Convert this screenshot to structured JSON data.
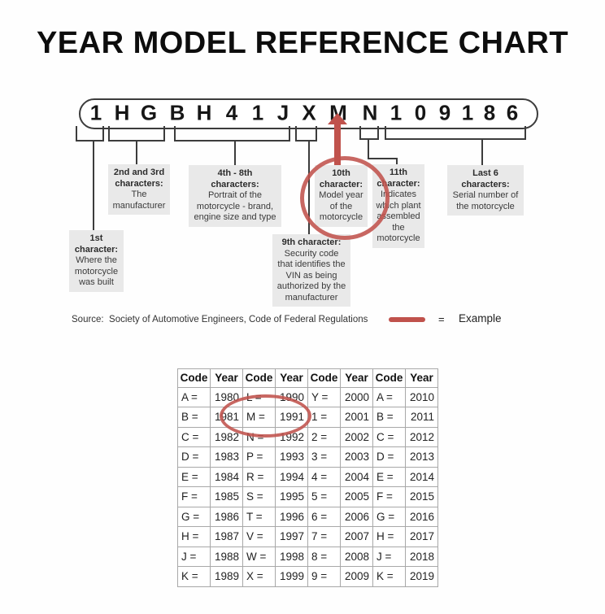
{
  "page_title": "YEAR MODEL REFERENCE CHART",
  "colors": {
    "accent_red": "#c0524c",
    "box_bg": "#e9e9e9",
    "line": "#3c3c3c"
  },
  "vin": {
    "characters": [
      "1",
      "H",
      "G",
      "B",
      "H",
      "4",
      "1",
      "J",
      "X",
      "M",
      "N",
      "1",
      "0",
      "9",
      "1",
      "8",
      "6"
    ],
    "highlighted_character": "M"
  },
  "callouts": {
    "first": {
      "bold_count": 2,
      "lines": [
        "1st",
        "character:",
        "Where the",
        "motorcycle",
        "was built"
      ]
    },
    "second_third": {
      "bold_count": 2,
      "lines": [
        "2nd and 3rd",
        "characters:",
        "The",
        "manufacturer"
      ]
    },
    "fourth_eighth": {
      "bold_count": 2,
      "lines": [
        "4th - 8th",
        "characters:",
        "Portrait of the",
        "motorcycle - brand,",
        "engine size and type"
      ]
    },
    "ninth": {
      "bold_count": 1,
      "lines": [
        "9th character:",
        "Security code",
        "that identifies the",
        "VIN as being",
        "authorized by the",
        "manufacturer"
      ]
    },
    "tenth": {
      "bold_count": 2,
      "lines": [
        "10th",
        "character:",
        "Model year",
        "of the",
        "motorcycle"
      ]
    },
    "eleventh": {
      "bold_count": 2,
      "lines": [
        "11th",
        "character:",
        "Indicates",
        "which plant",
        "assembled",
        "the",
        "motorcycle"
      ]
    },
    "last_six": {
      "bold_count": 2,
      "lines": [
        "Last 6",
        "characters:",
        "Serial number of",
        "the motorcycle"
      ]
    }
  },
  "legend": {
    "source_label": "Source:  Society of Automotive Engineers, Code of Federal Regulations",
    "equals_sign": "=",
    "example_label": "Example"
  },
  "year_table": {
    "headers": [
      "Code",
      "Year",
      "Code",
      "Year",
      "Code",
      "Year",
      "Code",
      "Year"
    ],
    "rows": [
      [
        "A =",
        "1980",
        "L =",
        "1990",
        "Y =",
        "2000",
        "A =",
        "2010"
      ],
      [
        "B =",
        "1981",
        "M =",
        "1991",
        "1 =",
        "2001",
        "B =",
        "2011"
      ],
      [
        "C =",
        "1982",
        "N =",
        "1992",
        "2 =",
        "2002",
        "C =",
        "2012"
      ],
      [
        "D =",
        "1983",
        "P =",
        "1993",
        "3 =",
        "2003",
        "D =",
        "2013"
      ],
      [
        "E =",
        "1984",
        "R =",
        "1994",
        "4 =",
        "2004",
        "E =",
        "2014"
      ],
      [
        "F =",
        "1985",
        "S =",
        "1995",
        "5 =",
        "2005",
        "F =",
        "2015"
      ],
      [
        "G =",
        "1986",
        "T =",
        "1996",
        "6 =",
        "2006",
        "G =",
        "2016"
      ],
      [
        "H =",
        "1987",
        "V =",
        "1997",
        "7 =",
        "2007",
        "H =",
        "2017"
      ],
      [
        "J =",
        "1988",
        "W =",
        "1998",
        "8 =",
        "2008",
        "J =",
        "2018"
      ],
      [
        "K =",
        "1989",
        "X =",
        "1999",
        "9 =",
        "2009",
        "K =",
        "2019"
      ]
    ],
    "highlighted_cell": "M = 1991"
  }
}
